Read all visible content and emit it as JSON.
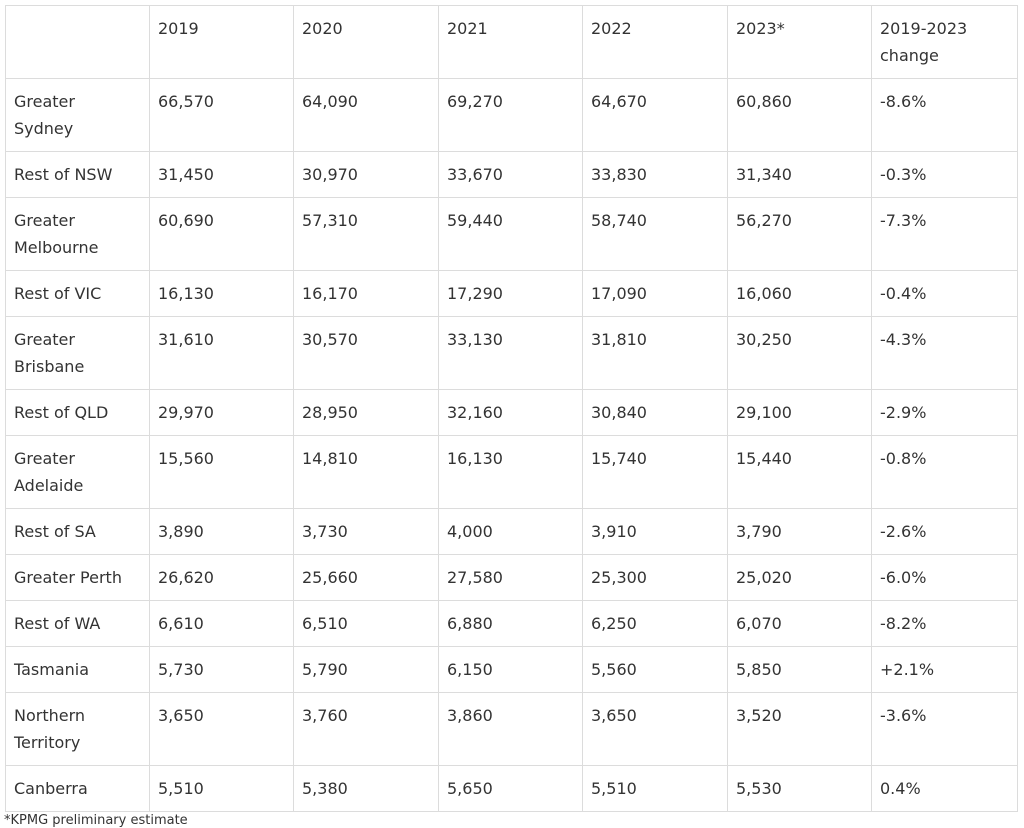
{
  "table": {
    "header": [
      "",
      "2019",
      "2020",
      "2021",
      "2022",
      "2023*",
      "2019-2023 change"
    ],
    "rows": [
      [
        "Greater Sydney",
        "66,570",
        "64,090",
        "69,270",
        "64,670",
        "60,860",
        "-8.6%"
      ],
      [
        "Rest of NSW",
        "31,450",
        "30,970",
        "33,670",
        "33,830",
        "31,340",
        "-0.3%"
      ],
      [
        "Greater Melbourne",
        "60,690",
        "57,310",
        "59,440",
        "58,740",
        "56,270",
        "-7.3%"
      ],
      [
        "Rest of VIC",
        "16,130",
        "16,170",
        "17,290",
        "17,090",
        "16,060",
        "-0.4%"
      ],
      [
        "Greater Brisbane",
        "31,610",
        "30,570",
        "33,130",
        "31,810",
        "30,250",
        "-4.3%"
      ],
      [
        "Rest of QLD",
        "29,970",
        "28,950",
        "32,160",
        "30,840",
        "29,100",
        "-2.9%"
      ],
      [
        "Greater Adelaide",
        "15,560",
        "14,810",
        "16,130",
        "15,740",
        "15,440",
        "-0.8%"
      ],
      [
        "Rest of SA",
        "3,890",
        "3,730",
        "4,000",
        "3,910",
        "3,790",
        "-2.6%"
      ],
      [
        "Greater Perth",
        "26,620",
        "25,660",
        "27,580",
        "25,300",
        "25,020",
        "-6.0%"
      ],
      [
        "Rest of WA",
        "6,610",
        "6,510",
        "6,880",
        "6,250",
        "6,070",
        "-8.2%"
      ],
      [
        "Tasmania",
        "5,730",
        "5,790",
        "6,150",
        "5,560",
        "5,850",
        "+2.1%"
      ],
      [
        "Northern Territory",
        "3,650",
        "3,760",
        "3,860",
        "3,650",
        "3,520",
        "-3.6%"
      ],
      [
        "Canberra",
        "5,510",
        "5,380",
        "5,650",
        "5,510",
        "5,530",
        "0.4%"
      ]
    ],
    "footnote": "*KPMG preliminary estimate"
  }
}
